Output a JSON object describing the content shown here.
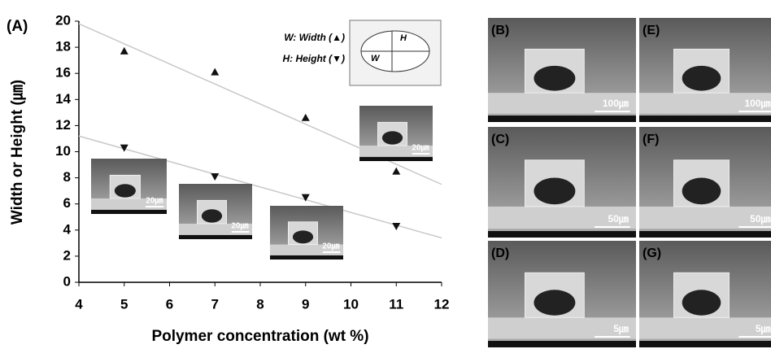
{
  "chart_data": {
    "type": "scatter",
    "panel_label": "(A)",
    "x_label": "Polymer concentration (wt %)",
    "y_label": "Width or Height (㎛)",
    "x": [
      5,
      7,
      9,
      11
    ],
    "series": [
      {
        "name": "W: Width (▲)",
        "marker": "triangle-up",
        "color": "#111111",
        "values": [
          17.7,
          16.1,
          12.6,
          8.5
        ]
      },
      {
        "name": "H: Height (▼)",
        "marker": "triangle-down",
        "color": "#111111",
        "values": [
          10.3,
          8.1,
          6.5,
          4.3
        ]
      }
    ],
    "fits": [
      {
        "x": [
          4,
          12
        ],
        "values": [
          19.8,
          7.5
        ],
        "color": "#c8c8c8"
      },
      {
        "x": [
          4,
          12
        ],
        "values": [
          11.2,
          3.4
        ],
        "color": "#c8c8c8"
      }
    ],
    "xlim": [
      4,
      12
    ],
    "ylim": [
      0,
      20
    ],
    "xticks": [
      4,
      5,
      6,
      7,
      8,
      9,
      10,
      11,
      12
    ],
    "yticks": [
      0,
      2,
      4,
      6,
      8,
      10,
      12,
      14,
      16,
      18,
      20
    ],
    "diagram": {
      "h": "H",
      "w": "W"
    },
    "insets": [
      {
        "scale": "20㎛"
      },
      {
        "scale": "20㎛"
      },
      {
        "scale": "20㎛"
      },
      {
        "scale": "20㎛"
      }
    ]
  },
  "images": [
    {
      "label": "(B)",
      "scale": "100㎛"
    },
    {
      "label": "(E)",
      "scale": "100㎛"
    },
    {
      "label": "(C)",
      "scale": "50㎛"
    },
    {
      "label": "(F)",
      "scale": "50㎛"
    },
    {
      "label": "(D)",
      "scale": "5㎛"
    },
    {
      "label": "(G)",
      "scale": "5㎛"
    }
  ]
}
